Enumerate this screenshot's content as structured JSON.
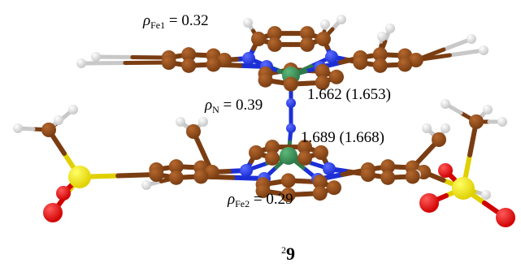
{
  "colors": {
    "carbon": "#7a3d12",
    "carbon_light": "#b5682e",
    "nitrogen": "#1c2fd6",
    "nitrogen_light": "#5b6dff",
    "iron": "#2e7a4a",
    "iron_light": "#5db878",
    "hydrogen": "#c8c8c8",
    "hydrogen_light": "#ffffff",
    "sulfur": "#e0d000",
    "sulfur_light": "#ffff66",
    "oxygen": "#d00000",
    "oxygen_light": "#ff5a5a"
  },
  "labels": {
    "rho_symbol": "ρ",
    "fe1_sub": "Fe1",
    "fe1_value": "= 0.32",
    "n_sub": "N",
    "n_value": "= 0.39",
    "fe2_sub": "Fe2",
    "fe2_value": "= 0.29",
    "bond_fe1_n": "1.662 (1.653)",
    "bond_fe2_n": "1.689 (1.668)"
  },
  "caption": {
    "superscript": "2",
    "number": "9"
  }
}
